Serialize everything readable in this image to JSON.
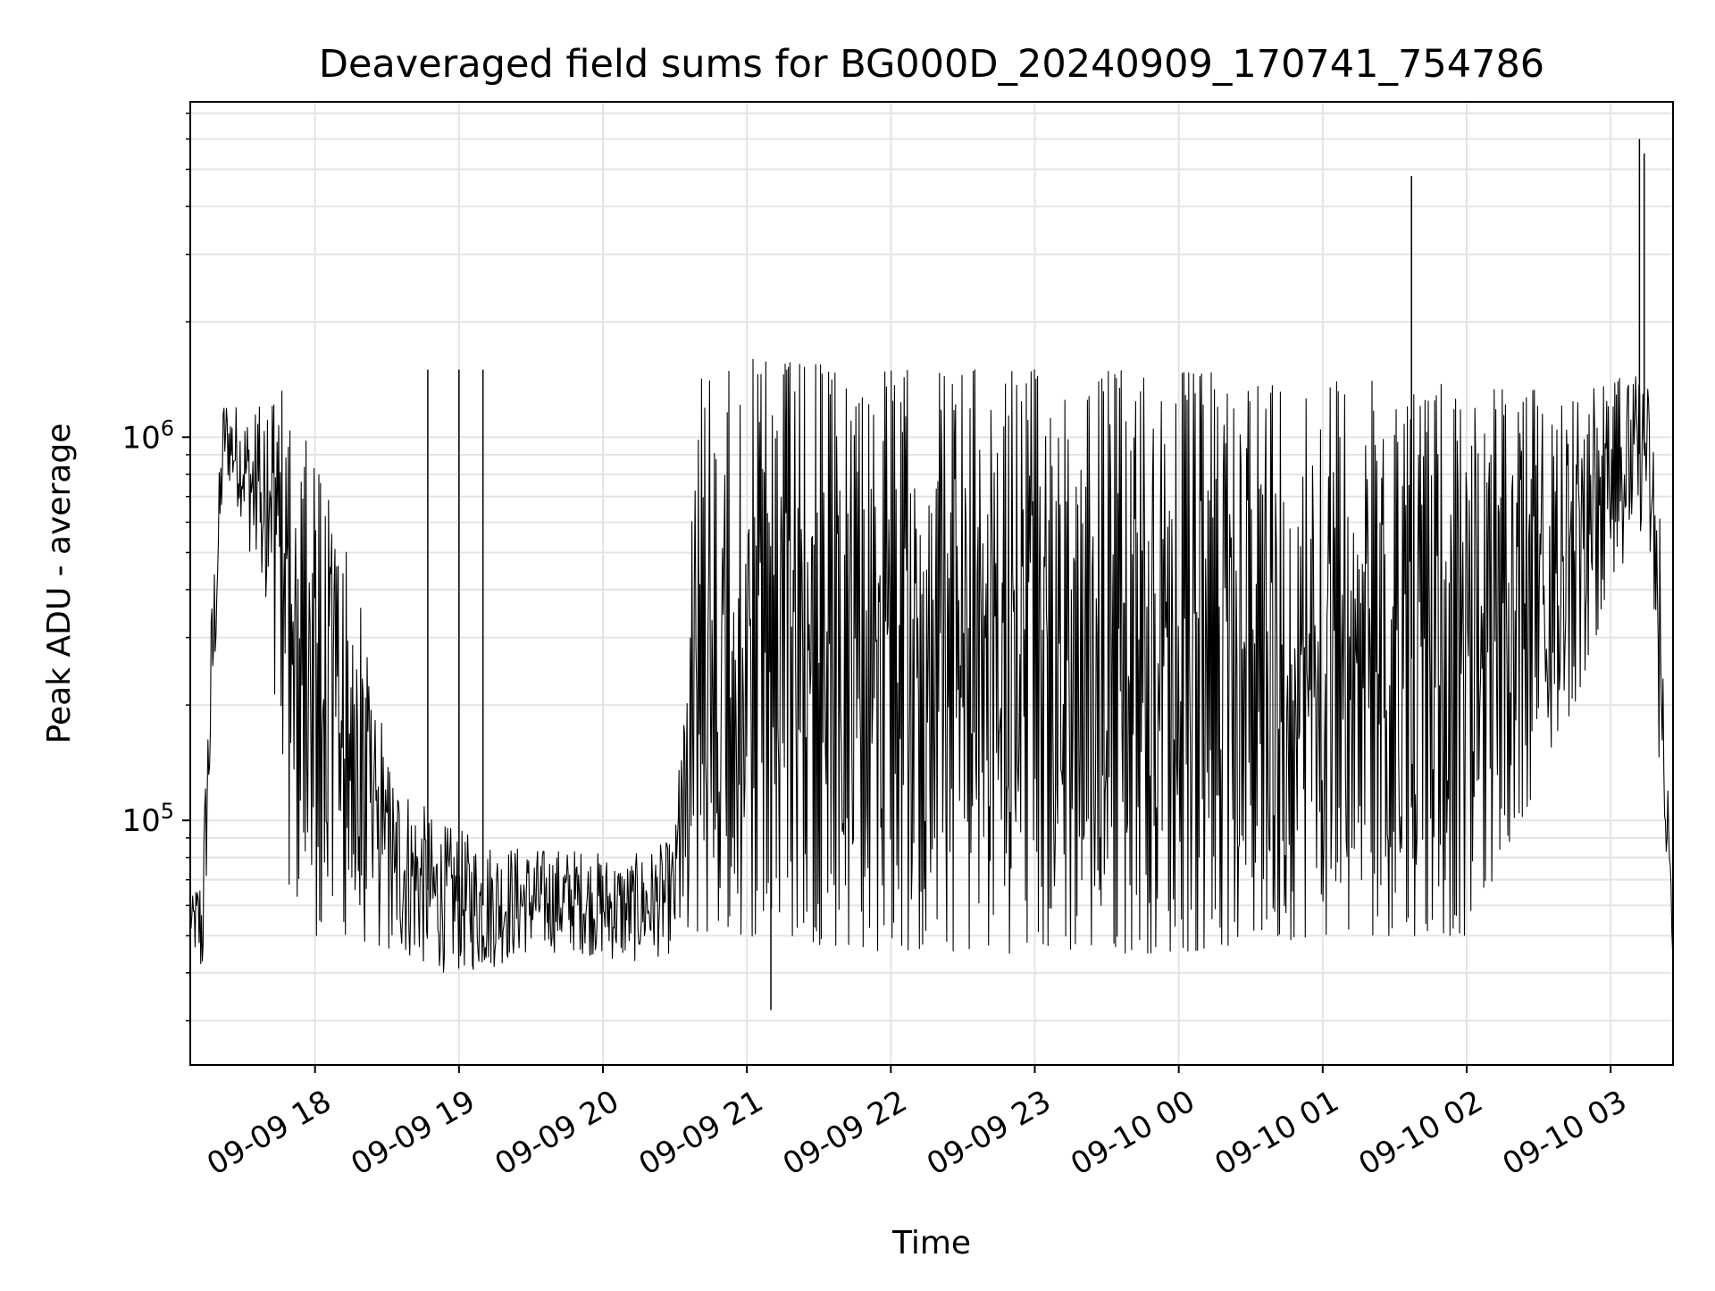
{
  "chart_data": {
    "type": "line",
    "title": "Deaveraged field sums for BG000D_20240909_170741_754786",
    "xlabel": "Time",
    "ylabel": "Peak ADU - average",
    "yscale": "log",
    "grid": true,
    "xlim": [
      "2024-09-09 17:08",
      "2024-09-10 03:26"
    ],
    "ylim": [
      23000,
      7500000
    ],
    "x_ticks": [
      "09-09 18",
      "09-09 19",
      "09-09 20",
      "09-09 21",
      "09-09 22",
      "09-09 23",
      "09-10 00",
      "09-10 01",
      "09-10 02",
      "09-10 03"
    ],
    "y_ticks": [
      {
        "value": 100000,
        "base": "10",
        "exp": "5"
      },
      {
        "value": 1000000,
        "base": "10",
        "exp": "6"
      }
    ],
    "series_color": "#000000",
    "envelope": [
      {
        "t": "2024-09-09 17:08",
        "low": 50000,
        "high": 60000
      },
      {
        "t": "2024-09-09 17:13",
        "low": 35000,
        "high": 80000
      },
      {
        "t": "2024-09-09 17:17",
        "low": 150000,
        "high": 400000
      },
      {
        "t": "2024-09-09 17:22",
        "low": 800000,
        "high": 1300000
      },
      {
        "t": "2024-09-09 17:30",
        "low": 600000,
        "high": 1200000
      },
      {
        "t": "2024-09-09 17:40",
        "low": 300000,
        "high": 1200000
      },
      {
        "t": "2024-09-09 17:50",
        "low": 60000,
        "high": 1400000
      },
      {
        "t": "2024-09-09 18:00",
        "low": 50000,
        "high": 900000
      },
      {
        "t": "2024-09-09 18:15",
        "low": 50000,
        "high": 500000
      },
      {
        "t": "2024-09-09 18:30",
        "low": 45000,
        "high": 150000
      },
      {
        "t": "2024-09-09 18:50",
        "low": 40000,
        "high": 100000
      },
      {
        "t": "2024-09-09 19:10",
        "low": 40000,
        "high": 90000
      },
      {
        "t": "2024-09-09 19:30",
        "low": 45000,
        "high": 85000
      },
      {
        "t": "2024-09-09 19:50",
        "low": 45000,
        "high": 85000
      },
      {
        "t": "2024-09-09 20:10",
        "low": 42000,
        "high": 80000
      },
      {
        "t": "2024-09-09 20:30",
        "low": 45000,
        "high": 90000
      },
      {
        "t": "2024-09-09 20:40",
        "low": 50000,
        "high": 1500000
      },
      {
        "t": "2024-09-09 21:00",
        "low": 50000,
        "high": 1600000
      },
      {
        "t": "2024-09-09 22:00",
        "low": 45000,
        "high": 1500000
      },
      {
        "t": "2024-09-09 23:00",
        "low": 45000,
        "high": 1500000
      },
      {
        "t": "2024-09-10 00:00",
        "low": 45000,
        "high": 1500000
      },
      {
        "t": "2024-09-10 01:00",
        "low": 50000,
        "high": 1400000
      },
      {
        "t": "2024-09-10 01:30",
        "low": 50000,
        "high": 1400000
      },
      {
        "t": "2024-09-10 02:00",
        "low": 50000,
        "high": 1400000
      },
      {
        "t": "2024-09-10 02:45",
        "low": 200000,
        "high": 1300000
      },
      {
        "t": "2024-09-10 03:00",
        "low": 400000,
        "high": 1400000
      },
      {
        "t": "2024-09-10 03:15",
        "low": 600000,
        "high": 1500000
      },
      {
        "t": "2024-09-10 03:20",
        "low": 150000,
        "high": 800000
      },
      {
        "t": "2024-09-10 03:26",
        "low": 38000,
        "high": 50000
      }
    ],
    "spikes": [
      {
        "t": "2024-09-09 18:47",
        "value": 1500000
      },
      {
        "t": "2024-09-09 19:00",
        "value": 1500000
      },
      {
        "t": "2024-09-09 19:10",
        "value": 1500000
      },
      {
        "t": "2024-09-09 21:10",
        "value": 32000
      },
      {
        "t": "2024-09-10 01:37",
        "value": 4800000
      },
      {
        "t": "2024-09-10 03:12",
        "value": 6000000
      },
      {
        "t": "2024-09-10 03:14",
        "value": 5500000
      }
    ]
  }
}
